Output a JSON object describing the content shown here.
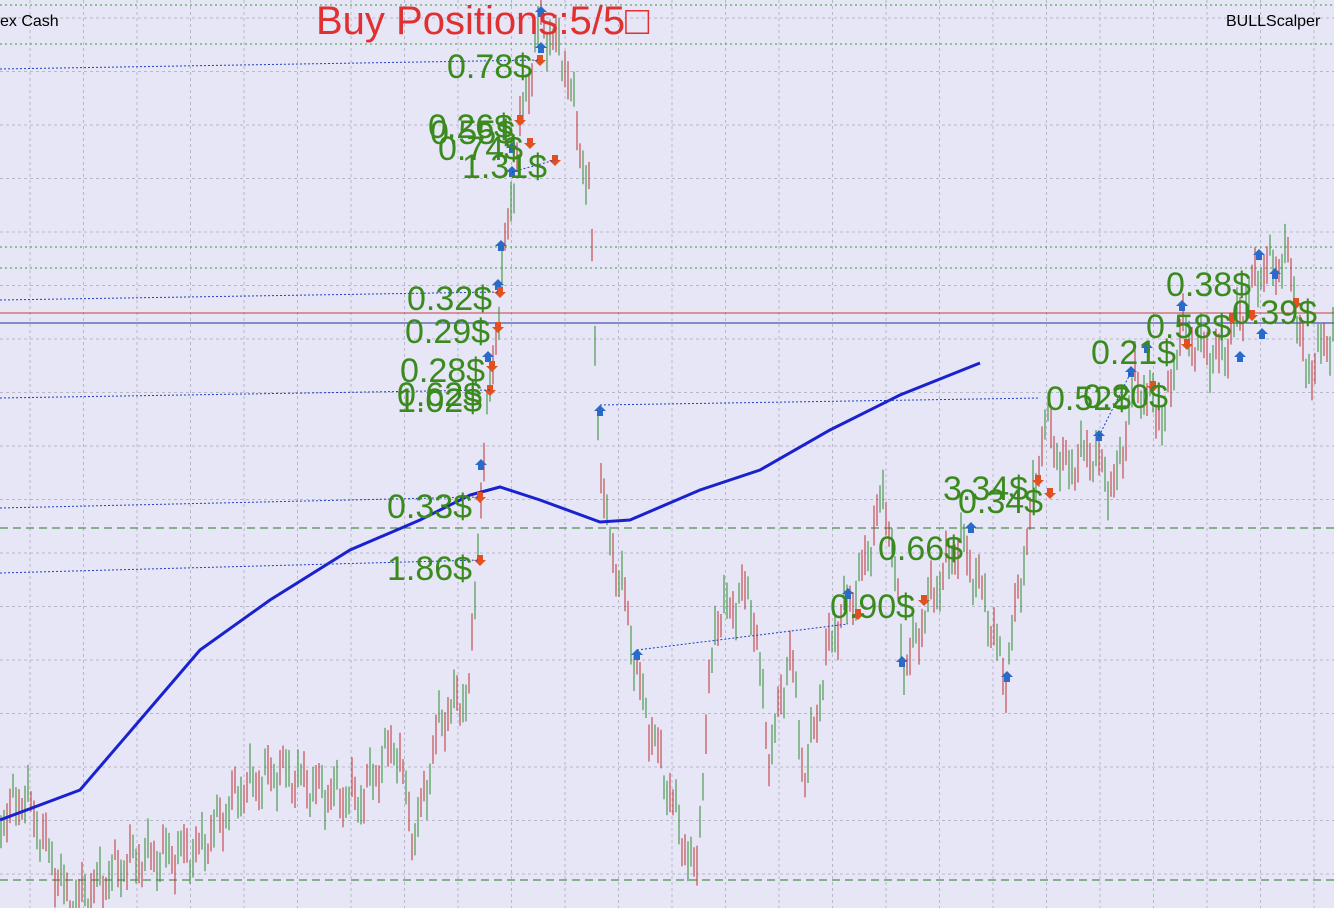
{
  "header": {
    "symbol": "ex Cash",
    "status": "Buy Positions:5/5□",
    "expert": "BULLScalper"
  },
  "profit_labels": [
    "0.78$",
    "0.26$",
    "0.55$",
    "0.74$",
    "1.31$",
    "0.32$",
    "0.29$",
    "0.28$",
    "0.62$",
    "1.02$",
    "0.33$",
    "1.86$",
    "3.34$",
    "0.34$",
    "0.66$",
    "0.90$",
    "0.52$",
    "0.20$",
    "0.21$",
    "0.38$",
    "0.58$",
    "0.39$"
  ]
}
